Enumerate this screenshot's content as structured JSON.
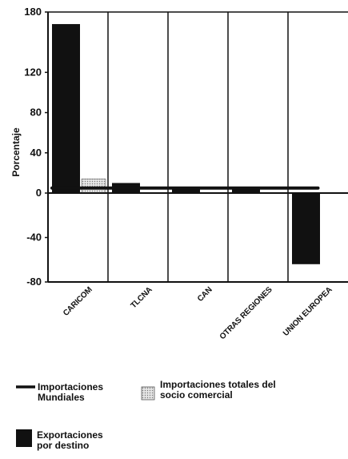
{
  "chart_data": {
    "type": "bar",
    "ylabel": "Porcentaje",
    "ylim": [
      -80,
      180
    ],
    "yticks": [
      180,
      120,
      80,
      40,
      0,
      -40,
      -80
    ],
    "categories": [
      "CARICOM",
      "TLCNA",
      "CAN",
      "OTRAS REGIONES",
      "UNION EUROPEA"
    ],
    "series": [
      {
        "name": "Exportaciones por destino",
        "kind": "bar",
        "color": "#111111",
        "values": [
          168,
          10,
          5,
          4,
          -64
        ]
      },
      {
        "name": "Importaciones totales del socio comercial",
        "kind": "bar",
        "color": "#d9d9d9",
        "values": [
          14,
          null,
          null,
          null,
          null
        ]
      },
      {
        "name": "Importaciones Mundiales",
        "kind": "line",
        "color": "#111111",
        "values": [
          5,
          5,
          5,
          5,
          5
        ]
      }
    ],
    "grid": false,
    "legend_position": "bottom"
  },
  "legend": {
    "line_label": [
      "Importaciones",
      "Mundiales"
    ],
    "total_label": [
      "Importaciones totales del",
      "socio comercial"
    ],
    "export_label": [
      "Exportaciones",
      "por destino"
    ]
  }
}
